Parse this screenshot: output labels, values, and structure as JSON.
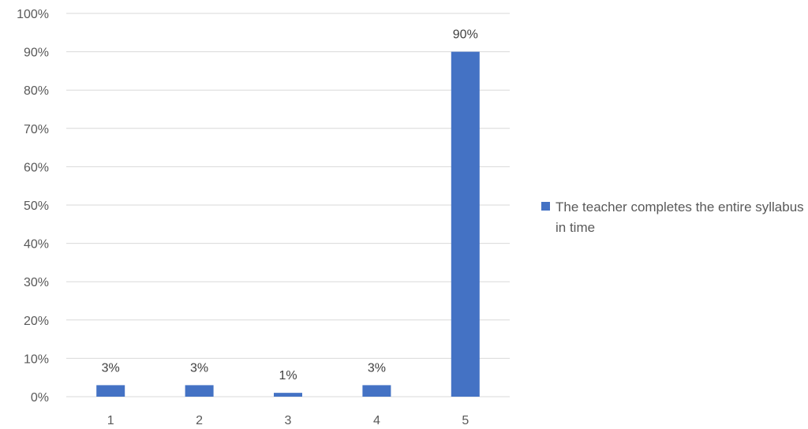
{
  "chart_data": {
    "type": "bar",
    "categories": [
      "1",
      "2",
      "3",
      "4",
      "5"
    ],
    "series": [
      {
        "name": "The teacher completes the entire syllabus in time",
        "values": [
          3,
          3,
          1,
          3,
          90
        ],
        "color": "#4472C4"
      }
    ],
    "data_labels": [
      "3%",
      "3%",
      "1%",
      "3%",
      "90%"
    ],
    "y_ticks": [
      "0%",
      "10%",
      "20%",
      "30%",
      "40%",
      "50%",
      "60%",
      "70%",
      "80%",
      "90%",
      "100%"
    ],
    "ylim": [
      0,
      100
    ],
    "grid": true,
    "legend_position": "right",
    "title": "",
    "xlabel": "",
    "ylabel": ""
  }
}
